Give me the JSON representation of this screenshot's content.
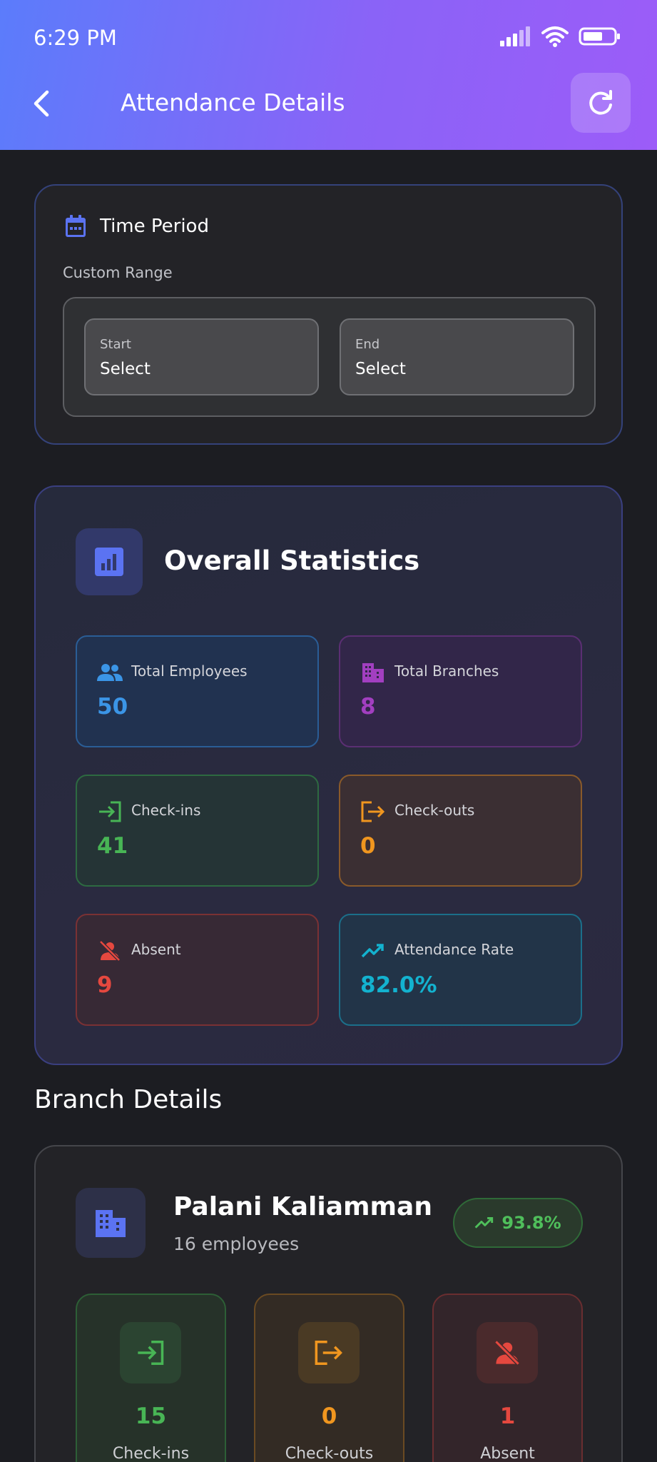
{
  "status_bar": {
    "time": "6:29 PM"
  },
  "header": {
    "title": "Attendance Details"
  },
  "time_period": {
    "title": "Time Period",
    "range_label": "Custom Range",
    "start": {
      "label": "Start",
      "value": "Select"
    },
    "end": {
      "label": "End",
      "value": "Select"
    }
  },
  "overall": {
    "title": "Overall Statistics",
    "tiles": [
      {
        "label": "Total Employees",
        "value": "50",
        "color": "#3b95e6"
      },
      {
        "label": "Total Branches",
        "value": "8",
        "color": "#a23fc0"
      },
      {
        "label": "Check-ins",
        "value": "41",
        "color": "#48b555"
      },
      {
        "label": "Check-outs",
        "value": "0",
        "color": "#f0961f"
      },
      {
        "label": "Absent",
        "value": "9",
        "color": "#e5483f"
      },
      {
        "label": "Attendance Rate",
        "value": "82.0%",
        "color": "#13b2cf"
      }
    ]
  },
  "branch_section": {
    "title": "Branch Details"
  },
  "branches": [
    {
      "name": "Palani Kaliamman",
      "employees": "16 employees",
      "rate": "93.8%",
      "stats": [
        {
          "label": "Check-ins",
          "value": "15",
          "color": "#48b555"
        },
        {
          "label": "Check-outs",
          "value": "0",
          "color": "#f0961f"
        },
        {
          "label": "Absent",
          "value": "1",
          "color": "#e5483f"
        }
      ]
    }
  ]
}
